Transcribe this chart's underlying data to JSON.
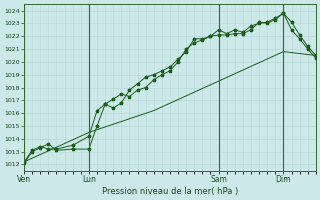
{
  "xlabel": "Pression niveau de la mer( hPa )",
  "bg_color": "#cce8e8",
  "grid_minor_color": "#b8d8d8",
  "grid_major_color": "#b8d8d8",
  "vline_color": "#336633",
  "line_color": "#1a5c1a",
  "ylim": [
    1011.5,
    1024.5
  ],
  "yticks": [
    1012,
    1013,
    1014,
    1015,
    1016,
    1017,
    1018,
    1019,
    1020,
    1021,
    1022,
    1023,
    1024
  ],
  "xtick_labels": [
    "Ven",
    "Lun",
    "Sam",
    "Dim"
  ],
  "xtick_positions": [
    0,
    24,
    72,
    96
  ],
  "vlines": [
    0,
    24,
    72,
    96
  ],
  "xmin": 0,
  "xmax": 108,
  "series1_x": [
    0,
    3,
    6,
    9,
    12,
    18,
    24,
    27,
    30,
    33,
    36,
    39,
    42,
    45,
    48,
    51,
    54,
    57,
    60,
    63,
    66,
    69,
    72,
    75,
    78,
    81,
    84,
    87,
    90,
    93,
    96,
    99,
    102,
    105,
    108
  ],
  "series1_y": [
    1012.1,
    1013.0,
    1013.3,
    1013.6,
    1013.1,
    1013.2,
    1013.2,
    1015.0,
    1016.7,
    1016.4,
    1016.8,
    1017.8,
    1018.3,
    1018.8,
    1019.0,
    1019.3,
    1019.6,
    1020.2,
    1020.8,
    1021.8,
    1021.8,
    1022.0,
    1022.1,
    1022.1,
    1022.2,
    1022.2,
    1022.5,
    1023.1,
    1023.0,
    1023.3,
    1023.8,
    1023.1,
    1022.1,
    1021.2,
    1020.5
  ],
  "series2_x": [
    0,
    3,
    6,
    9,
    12,
    18,
    24,
    27,
    30,
    33,
    36,
    39,
    42,
    45,
    48,
    51,
    54,
    57,
    60,
    63,
    66,
    69,
    72,
    75,
    78,
    81,
    84,
    87,
    90,
    93,
    96,
    99,
    102,
    105,
    108
  ],
  "series2_y": [
    1012.2,
    1013.1,
    1013.4,
    1013.2,
    1013.2,
    1013.5,
    1014.2,
    1016.2,
    1016.7,
    1017.1,
    1017.5,
    1017.3,
    1017.8,
    1018.0,
    1018.6,
    1019.0,
    1019.3,
    1020.0,
    1021.0,
    1021.5,
    1021.7,
    1022.0,
    1022.5,
    1022.2,
    1022.5,
    1022.3,
    1022.8,
    1023.0,
    1023.1,
    1023.4,
    1023.8,
    1022.5,
    1021.8,
    1021.0,
    1020.3
  ],
  "series3_x": [
    0,
    24,
    48,
    72,
    96,
    108
  ],
  "series3_y": [
    1012.2,
    1014.5,
    1016.2,
    1018.5,
    1020.8,
    1020.5
  ]
}
